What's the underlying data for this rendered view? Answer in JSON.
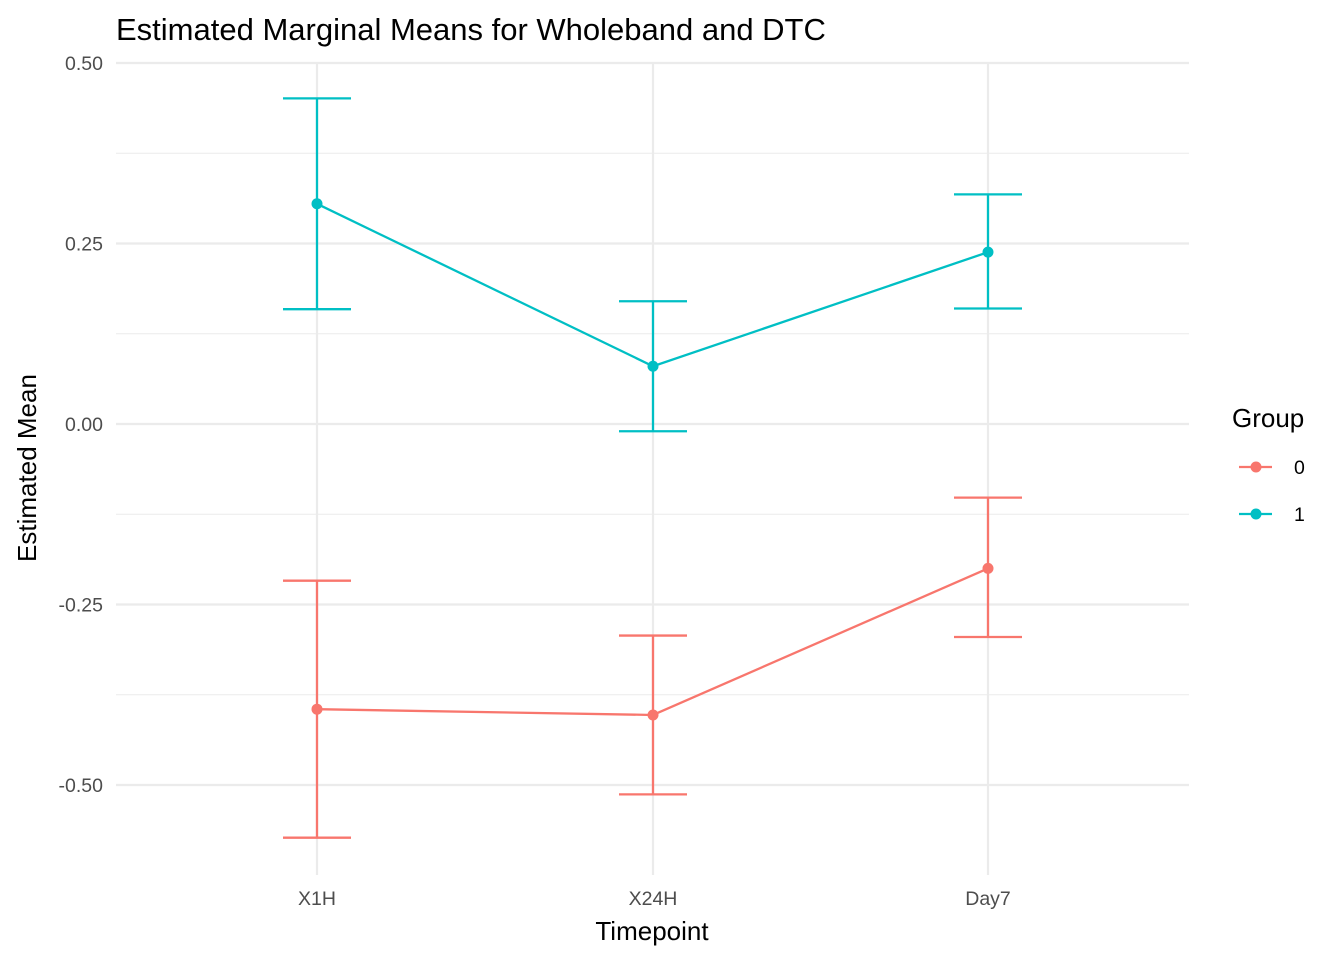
{
  "chart_data": {
    "type": "line",
    "title": "Estimated Marginal Means for Wholeband and DTC",
    "xlabel": "Timepoint",
    "ylabel": "Estimated Mean",
    "categories": [
      "X1H",
      "X24H",
      "Day7"
    ],
    "ylim": [
      -0.62,
      0.5
    ],
    "y_ticks": [
      0.5,
      0.25,
      0.0,
      -0.25,
      -0.5
    ],
    "y_tick_labels": [
      "0.50",
      "0.25",
      "0.00",
      "-0.25",
      "-0.50"
    ],
    "grid": true,
    "legend": {
      "title": "Group",
      "position": "right"
    },
    "series": [
      {
        "name": "0",
        "color": "#F8766D",
        "values": [
          -0.395,
          -0.403,
          -0.2
        ],
        "lower": [
          -0.573,
          -0.513,
          -0.295
        ],
        "upper": [
          -0.217,
          -0.293,
          -0.102
        ]
      },
      {
        "name": "1",
        "color": "#00BFC4",
        "values": [
          0.305,
          0.08,
          0.238
        ],
        "lower": [
          0.159,
          -0.01,
          0.16
        ],
        "upper": [
          0.451,
          0.17,
          0.318
        ]
      }
    ]
  }
}
